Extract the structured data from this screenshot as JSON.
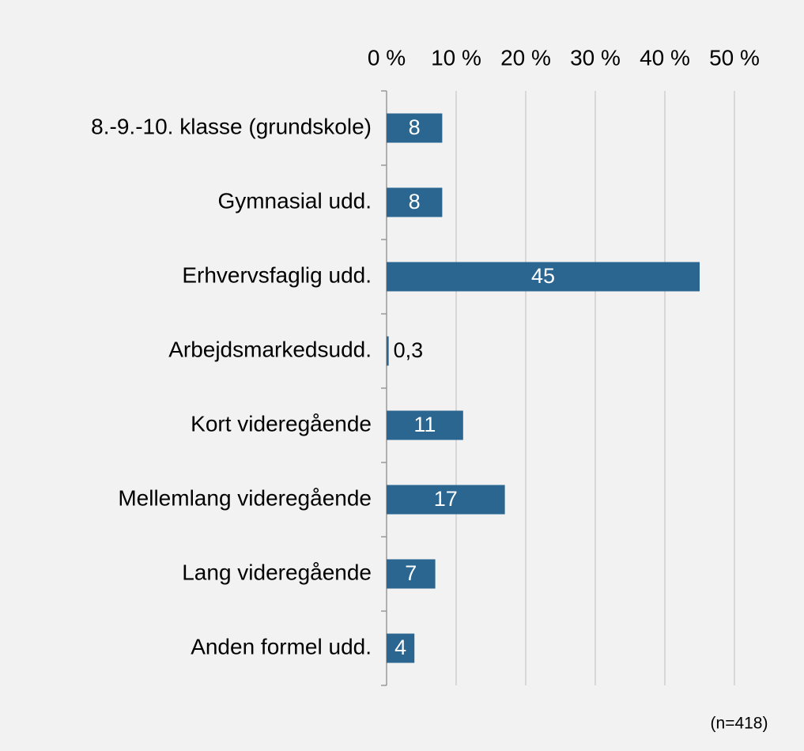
{
  "chart_data": {
    "type": "barh",
    "categories": [
      "8.-9.-10. klasse (grundskole)",
      "Gymnasial udd.",
      "Erhvervsfaglig udd.",
      "Arbejdsmarkedsudd.",
      "Kort videregående",
      "Mellemlang videregående",
      "Lang videregående",
      "Anden formel udd."
    ],
    "values": [
      8,
      8,
      45,
      0.3,
      11,
      17,
      7,
      4
    ],
    "value_labels": [
      "8",
      "8",
      "45",
      "0,3",
      "11",
      "17",
      "7",
      "4"
    ],
    "color": "#2a6690",
    "xlim": [
      0,
      50
    ],
    "xticks": [
      {
        "value": 0,
        "label": "0 %"
      },
      {
        "value": 10,
        "label": "10 %"
      },
      {
        "value": 20,
        "label": "20 %"
      },
      {
        "value": 30,
        "label": "30 %"
      },
      {
        "value": 40,
        "label": "40 %"
      },
      {
        "value": 50,
        "label": "50 %"
      }
    ],
    "grid": true,
    "annotation": "(n=418)"
  }
}
